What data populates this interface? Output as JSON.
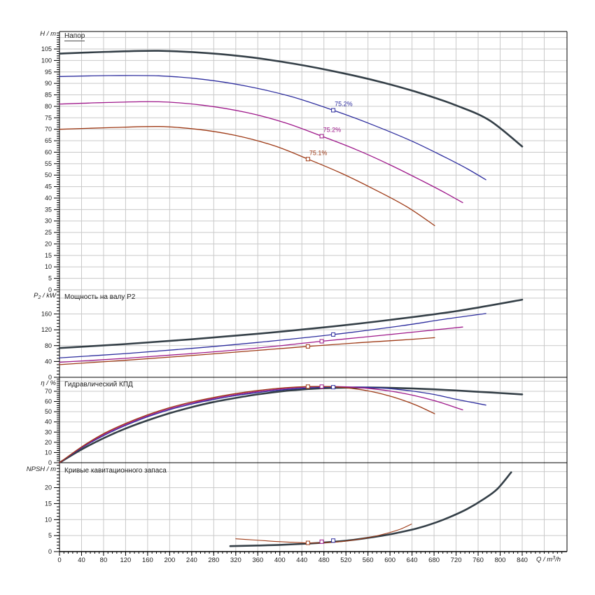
{
  "colors": {
    "grid": "#c9c9c9",
    "axis": "#000000",
    "text": "#1c1c1c",
    "boundary_light": "#c0c0c0",
    "series_dark": "#343f47",
    "series_blue": "#2d2d9e",
    "series_magenta": "#9e188a",
    "series_red": "#9e3a16"
  },
  "x_axis": {
    "unit": {
      "var": "Q",
      "mid": " / m",
      "sup": "3",
      "end": "/h"
    },
    "ticks": [
      0,
      40,
      80,
      120,
      160,
      200,
      240,
      280,
      320,
      360,
      400,
      440,
      480,
      520,
      560,
      600,
      640,
      680,
      720,
      760,
      800,
      840
    ],
    "xlim": [
      0,
      920
    ],
    "major_step": 40,
    "minor_step": 8
  },
  "chart_data": [
    {
      "id": "head",
      "type": "line",
      "title": "Напор",
      "unit": {
        "var": "H",
        "sub": "",
        "rest": " / m"
      },
      "ylim": [
        0,
        112
      ],
      "grid_step": 5,
      "minor_step": 1,
      "yticks": [
        0,
        5,
        10,
        15,
        20,
        25,
        30,
        35,
        40,
        45,
        50,
        55,
        60,
        65,
        70,
        75,
        80,
        85,
        90,
        95,
        100,
        105
      ],
      "series": [
        {
          "name": "s1",
          "color": "series_dark",
          "width": 2.6,
          "points": [
            [
              0,
              103
            ],
            [
              90,
              103.8
            ],
            [
              180,
              104.2
            ],
            [
              270,
              103.2
            ],
            [
              350,
              101.3
            ],
            [
              430,
              98.4
            ],
            [
              510,
              94.7
            ],
            [
              590,
              90.2
            ],
            [
              660,
              85.4
            ],
            [
              720,
              80.4
            ],
            [
              780,
              74
            ],
            [
              840,
              62.5
            ]
          ]
        },
        {
          "name": "s2",
          "color": "series_blue",
          "width": 1.3,
          "points": [
            [
              0,
              93
            ],
            [
              90,
              93.4
            ],
            [
              180,
              93.3
            ],
            [
              260,
              91.8
            ],
            [
              340,
              88.8
            ],
            [
              420,
              84.3
            ],
            [
              497,
              78.3
            ],
            [
              570,
              71.8
            ],
            [
              640,
              64.8
            ],
            [
              700,
              57.8
            ],
            [
              740,
              52.8
            ],
            [
              774,
              48
            ]
          ]
        },
        {
          "name": "s3",
          "color": "series_magenta",
          "width": 1.3,
          "points": [
            [
              0,
              81
            ],
            [
              90,
              81.7
            ],
            [
              180,
              82
            ],
            [
              260,
              80.5
            ],
            [
              340,
              77.3
            ],
            [
              410,
              72.8
            ],
            [
              476,
              67
            ],
            [
              540,
              61
            ],
            [
              600,
              54.5
            ],
            [
              660,
              47.3
            ],
            [
              700,
              42.3
            ],
            [
              732,
              38
            ]
          ]
        },
        {
          "name": "s4",
          "color": "series_red",
          "width": 1.3,
          "points": [
            [
              0,
              70
            ],
            [
              90,
              70.7
            ],
            [
              180,
              71.2
            ],
            [
              250,
              70
            ],
            [
              320,
              67.3
            ],
            [
              390,
              62.8
            ],
            [
              451,
              57
            ],
            [
              510,
              51
            ],
            [
              570,
              44
            ],
            [
              630,
              36.3
            ],
            [
              681,
              28
            ]
          ]
        }
      ],
      "markers": [
        {
          "color": "series_blue",
          "q": 497,
          "v": null,
          "series": 1,
          "label": "75.2%"
        },
        {
          "color": "series_magenta",
          "q": 476,
          "v": null,
          "series": 2,
          "label": "75.2%"
        },
        {
          "color": "series_red",
          "q": 451,
          "v": null,
          "series": 3,
          "label": "75.1%"
        }
      ]
    },
    {
      "id": "power",
      "type": "line",
      "title": "Мощность на валу P2",
      "unit": {
        "var": "P",
        "sub": "2",
        "rest": " / kW"
      },
      "ylim": [
        0,
        220
      ],
      "grid_step": 40,
      "minor_step": 8,
      "yticks": [
        0,
        40,
        80,
        120,
        160
      ],
      "series": [
        {
          "name": "s1",
          "color": "series_dark",
          "width": 2.6,
          "points": [
            [
              0,
              74
            ],
            [
              120,
              84
            ],
            [
              240,
              96
            ],
            [
              360,
              110
            ],
            [
              480,
              126
            ],
            [
              600,
              145
            ],
            [
              720,
              167
            ],
            [
              840,
              196
            ]
          ]
        },
        {
          "name": "s2",
          "color": "series_blue",
          "width": 1.3,
          "points": [
            [
              0,
              49
            ],
            [
              120,
              60
            ],
            [
              240,
              73
            ],
            [
              360,
              88
            ],
            [
              497,
              108
            ],
            [
              620,
              130
            ],
            [
              700,
              147
            ],
            [
              774,
              161
            ]
          ]
        },
        {
          "name": "s3",
          "color": "series_magenta",
          "width": 1.3,
          "points": [
            [
              0,
              38
            ],
            [
              120,
              48
            ],
            [
              240,
              60
            ],
            [
              360,
              74
            ],
            [
              476,
              91
            ],
            [
              600,
              108
            ],
            [
              676,
              119
            ],
            [
              732,
              127
            ]
          ]
        },
        {
          "name": "s4",
          "color": "series_red",
          "width": 1.3,
          "points": [
            [
              0,
              32
            ],
            [
              120,
              43
            ],
            [
              240,
              55
            ],
            [
              360,
              68
            ],
            [
              451,
              78
            ],
            [
              540,
              87
            ],
            [
              620,
              94
            ],
            [
              681,
              100
            ]
          ]
        }
      ],
      "markers": [
        {
          "color": "series_blue",
          "q": 497,
          "v": null,
          "series": 1,
          "label": ""
        },
        {
          "color": "series_magenta",
          "q": 476,
          "v": null,
          "series": 2,
          "label": ""
        },
        {
          "color": "series_red",
          "q": 451,
          "v": null,
          "series": 3,
          "label": ""
        }
      ]
    },
    {
      "id": "efficiency",
      "type": "line",
      "title": "Гидравлический КПД",
      "unit": {
        "var": "η",
        "sub": "",
        "rest": " / %"
      },
      "ylim": [
        0,
        83
      ],
      "grid_step": 10,
      "minor_step": 2,
      "yticks": [
        0,
        10,
        20,
        30,
        40,
        50,
        60,
        70
      ],
      "series": [
        {
          "name": "s1",
          "color": "series_dark",
          "width": 2.6,
          "points": [
            [
              0,
              0
            ],
            [
              40,
              13
            ],
            [
              80,
              24
            ],
            [
              120,
              33.5
            ],
            [
              160,
              41.5
            ],
            [
              200,
              48.5
            ],
            [
              240,
              54.5
            ],
            [
              280,
              59.5
            ],
            [
              320,
              63.5
            ],
            [
              360,
              67
            ],
            [
              400,
              69.8
            ],
            [
              440,
              71.8
            ],
            [
              480,
              73
            ],
            [
              520,
              73.6
            ],
            [
              560,
              73.7
            ],
            [
              600,
              73.4
            ],
            [
              640,
              72.8
            ],
            [
              680,
              71.9
            ],
            [
              720,
              70.8
            ],
            [
              760,
              69.5
            ],
            [
              800,
              68.3
            ],
            [
              840,
              67
            ]
          ]
        },
        {
          "name": "s2",
          "color": "series_blue",
          "width": 1.3,
          "points": [
            [
              0,
              0
            ],
            [
              40,
              14.5
            ],
            [
              80,
              26.5
            ],
            [
              120,
              36.5
            ],
            [
              160,
              45
            ],
            [
              200,
              52
            ],
            [
              240,
              57.5
            ],
            [
              280,
              62
            ],
            [
              320,
              65.8
            ],
            [
              360,
              68.8
            ],
            [
              400,
              71.2
            ],
            [
              440,
              72.9
            ],
            [
              480,
              73.9
            ],
            [
              520,
              74.2
            ],
            [
              560,
              73.9
            ],
            [
              600,
              72.6
            ],
            [
              640,
              70.3
            ],
            [
              680,
              66.9
            ],
            [
              720,
              62.2
            ],
            [
              750,
              59
            ],
            [
              774,
              56.5
            ]
          ]
        },
        {
          "name": "s3",
          "color": "series_magenta",
          "width": 1.3,
          "points": [
            [
              0,
              0
            ],
            [
              40,
              15
            ],
            [
              80,
              27.5
            ],
            [
              120,
              37.5
            ],
            [
              160,
              46
            ],
            [
              200,
              53
            ],
            [
              240,
              58.5
            ],
            [
              280,
              63
            ],
            [
              320,
              66.8
            ],
            [
              360,
              69.8
            ],
            [
              400,
              72.2
            ],
            [
              440,
              73.9
            ],
            [
              480,
              74.7
            ],
            [
              520,
              74.3
            ],
            [
              560,
              72.9
            ],
            [
              600,
              70.3
            ],
            [
              640,
              66.3
            ],
            [
              680,
              60.9
            ],
            [
              710,
              55.8
            ],
            [
              732,
              51.8
            ]
          ]
        },
        {
          "name": "s4",
          "color": "series_red",
          "width": 1.3,
          "points": [
            [
              0,
              0
            ],
            [
              40,
              15.5
            ],
            [
              80,
              28.5
            ],
            [
              120,
              38.5
            ],
            [
              160,
              47
            ],
            [
              200,
              54
            ],
            [
              240,
              59.5
            ],
            [
              280,
              64
            ],
            [
              320,
              67.8
            ],
            [
              360,
              70.8
            ],
            [
              400,
              73.1
            ],
            [
              440,
              74.5
            ],
            [
              470,
              74.8
            ],
            [
              500,
              74.4
            ],
            [
              530,
              72.9
            ],
            [
              560,
              70.4
            ],
            [
              590,
              66.8
            ],
            [
              620,
              62
            ],
            [
              650,
              55.9
            ],
            [
              681,
              48
            ]
          ]
        }
      ],
      "markers": [
        {
          "color": "series_blue",
          "q": 497,
          "v": null,
          "series": 1,
          "label": ""
        },
        {
          "color": "series_magenta",
          "q": 476,
          "v": null,
          "series": 2,
          "label": ""
        },
        {
          "color": "series_red",
          "q": 451,
          "v": null,
          "series": 3,
          "label": ""
        }
      ]
    },
    {
      "id": "npsh",
      "type": "line",
      "title": "Кривые кавитационного запаса",
      "unit": {
        "var": "NPSH",
        "sub": "",
        "rest": " / m"
      },
      "ylim": [
        0,
        27.5
      ],
      "grid_step": 5,
      "minor_step": 1,
      "yticks": [
        0,
        5,
        10,
        15,
        20
      ],
      "series": [
        {
          "name": "s1",
          "color": "series_dark",
          "width": 2.6,
          "points": [
            [
              310,
              1.7
            ],
            [
              360,
              1.9
            ],
            [
              400,
              2.1
            ],
            [
              440,
              2.4
            ],
            [
              470,
              2.7
            ],
            [
              500,
              3.1
            ],
            [
              530,
              3.6
            ],
            [
              560,
              4.3
            ],
            [
              590,
              5.1
            ],
            [
              620,
              6.1
            ],
            [
              650,
              7.3
            ],
            [
              680,
              8.9
            ],
            [
              710,
              10.9
            ],
            [
              740,
              13.3
            ],
            [
              770,
              16.4
            ],
            [
              795,
              19.6
            ],
            [
              820,
              24.8
            ]
          ]
        },
        {
          "name": "s4",
          "color": "series_red",
          "width": 1.1,
          "points": [
            [
              320,
              4.0
            ],
            [
              355,
              3.6
            ],
            [
              390,
              3.2
            ],
            [
              425,
              2.9
            ],
            [
              455,
              2.7
            ],
            [
              485,
              2.8
            ],
            [
              515,
              3.2
            ],
            [
              545,
              3.9
            ],
            [
              575,
              4.9
            ],
            [
              600,
              6.0
            ],
            [
              620,
              7.1
            ],
            [
              639,
              8.6
            ]
          ]
        }
      ],
      "markers": [
        {
          "color": "series_blue",
          "q": 497,
          "v": 3.45,
          "series": null,
          "label": ""
        },
        {
          "color": "series_magenta",
          "q": 476,
          "v": 3.1,
          "series": null,
          "label": ""
        },
        {
          "color": "series_red",
          "q": 451,
          "v": null,
          "series": 1,
          "label": ""
        }
      ]
    }
  ]
}
